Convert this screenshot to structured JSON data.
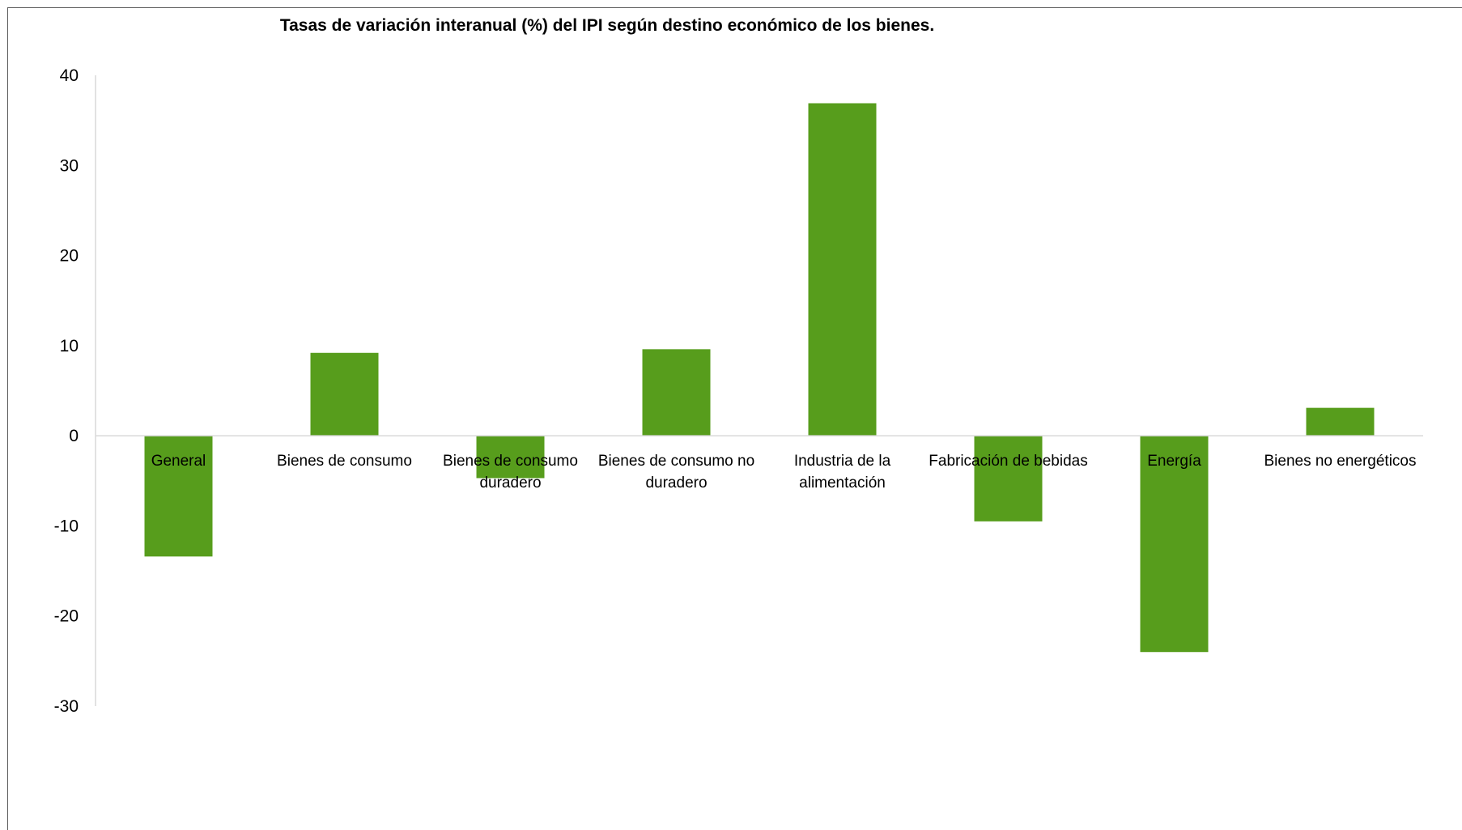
{
  "chart_data": {
    "type": "bar",
    "title": "Tasas de variación interanual (%) del IPI según destino económico de los bienes.",
    "xlabel": "",
    "ylabel": "",
    "categories": [
      "General",
      "Bienes de consumo",
      "Bienes de consumo duradero",
      "Bienes de consumo no duradero",
      "Industria de la alimentación",
      "Fabricación de bebidas",
      "Energía",
      "Bienes no energéticos"
    ],
    "category_lines": [
      [
        "General"
      ],
      [
        "Bienes de consumo"
      ],
      [
        "Bienes de consumo",
        "duradero"
      ],
      [
        "Bienes de consumo no",
        "duradero"
      ],
      [
        "Industria de la",
        "alimentación"
      ],
      [
        "Fabricación de bebidas"
      ],
      [
        "Energía"
      ],
      [
        "Bienes no energéticos"
      ]
    ],
    "values": [
      -13.4,
      9.2,
      -4.7,
      9.6,
      36.9,
      -9.5,
      -24.0,
      3.1
    ],
    "ylim": [
      -30,
      40
    ],
    "yticks": [
      "40",
      "30",
      "20",
      "10",
      "0",
      "-10",
      "-20",
      "-30"
    ],
    "grid": false,
    "legend": "none",
    "colors": {
      "bar": "#579D1C",
      "axis": "#D9D9D9",
      "text": "#000000"
    }
  }
}
